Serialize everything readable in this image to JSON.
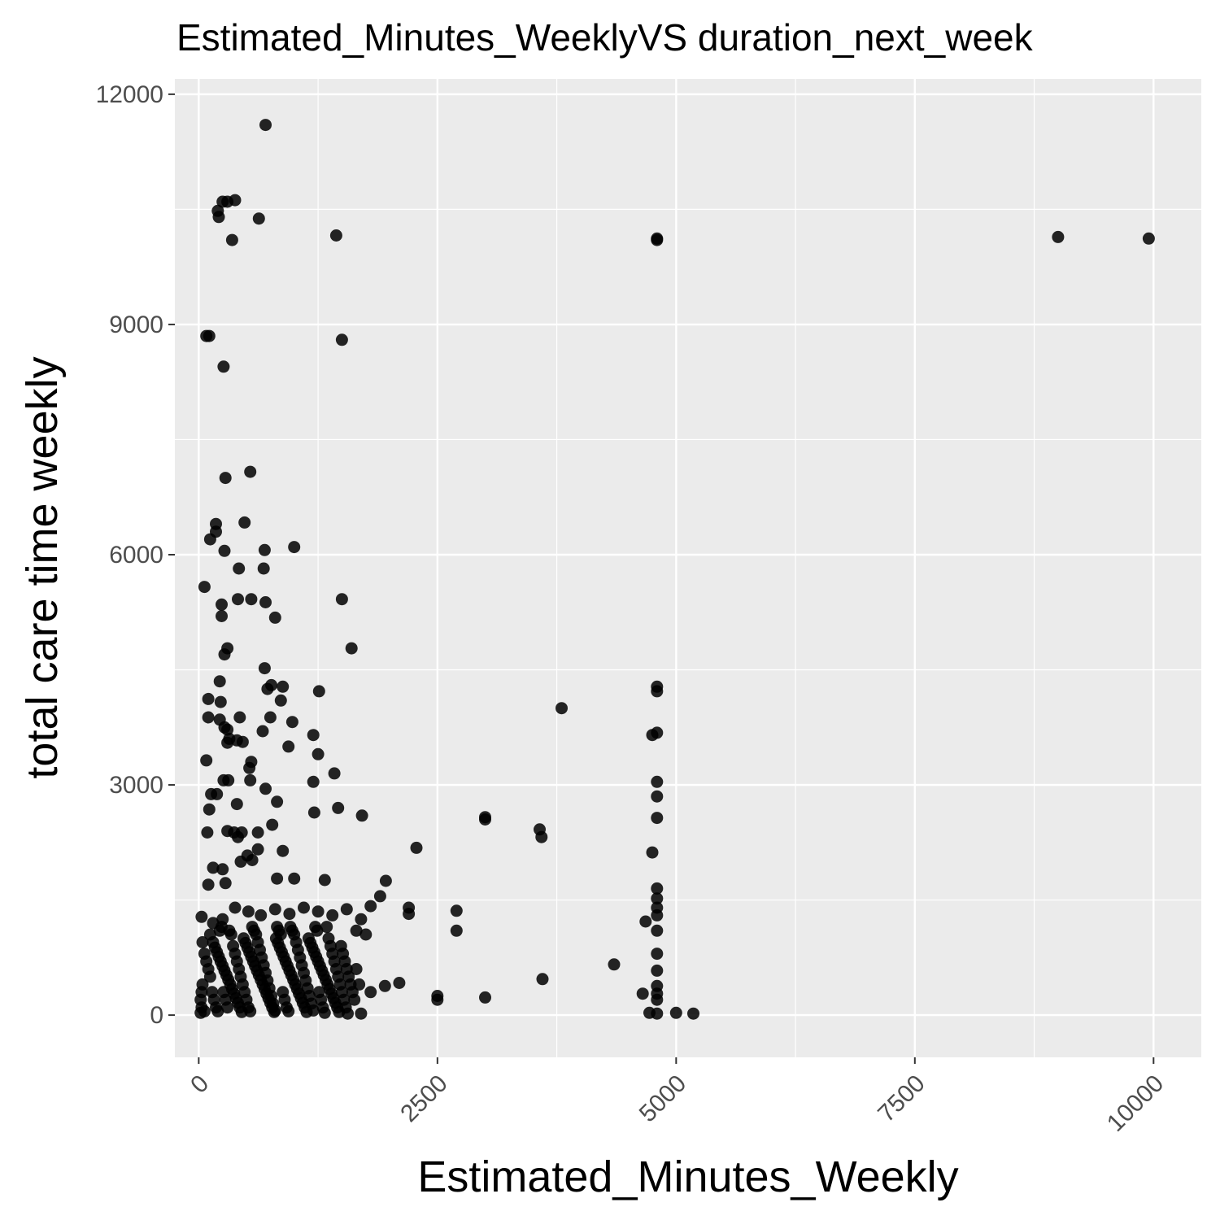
{
  "chart_data": {
    "type": "scatter",
    "title": "Estimated_Minutes_WeeklyVS duration_next_week",
    "xlabel": "Estimated_Minutes_Weekly",
    "ylabel": "total care time weekly",
    "xlim": [
      -250,
      10500
    ],
    "ylim": [
      -550,
      12200
    ],
    "xticks": [
      0,
      2500,
      5000,
      7500,
      10000
    ],
    "xtick_labels": [
      "0",
      "2500",
      "5000",
      "7500",
      "10000"
    ],
    "yticks": [
      0,
      3000,
      6000,
      9000,
      12000
    ],
    "ytick_labels": [
      "0",
      "3000",
      "6000",
      "9000",
      "12000"
    ],
    "grid": true,
    "point_color": "#000000",
    "panel_background": "#ebebeb",
    "grid_color": "#ffffff",
    "series": [
      {
        "points": [
          [
            700,
            11600
          ],
          [
            250,
            10600
          ],
          [
            300,
            10600
          ],
          [
            380,
            10620
          ],
          [
            200,
            10480
          ],
          [
            210,
            10400
          ],
          [
            630,
            10380
          ],
          [
            350,
            10100
          ],
          [
            1440,
            10160
          ],
          [
            4800,
            10100
          ],
          [
            4800,
            10120
          ],
          [
            9000,
            10140
          ],
          [
            9950,
            10120
          ],
          [
            80,
            8850
          ],
          [
            110,
            8850
          ],
          [
            1500,
            8800
          ],
          [
            260,
            8450
          ],
          [
            280,
            7000
          ],
          [
            540,
            7080
          ],
          [
            180,
            6400
          ],
          [
            180,
            6300
          ],
          [
            120,
            6200
          ],
          [
            480,
            6420
          ],
          [
            270,
            6050
          ],
          [
            690,
            6060
          ],
          [
            1000,
            6100
          ],
          [
            60,
            5580
          ],
          [
            420,
            5820
          ],
          [
            680,
            5820
          ],
          [
            410,
            5420
          ],
          [
            550,
            5420
          ],
          [
            1500,
            5420
          ],
          [
            240,
            5350
          ],
          [
            700,
            5380
          ],
          [
            240,
            5200
          ],
          [
            800,
            5180
          ],
          [
            1600,
            4780
          ],
          [
            300,
            4780
          ],
          [
            270,
            4700
          ],
          [
            690,
            4520
          ],
          [
            220,
            4350
          ],
          [
            720,
            4250
          ],
          [
            760,
            4300
          ],
          [
            880,
            4280
          ],
          [
            1260,
            4220
          ],
          [
            100,
            4120
          ],
          [
            860,
            4100
          ],
          [
            230,
            4080
          ],
          [
            3800,
            4000
          ],
          [
            4800,
            4280
          ],
          [
            4800,
            4220
          ],
          [
            100,
            3880
          ],
          [
            220,
            3850
          ],
          [
            430,
            3880
          ],
          [
            750,
            3880
          ],
          [
            980,
            3820
          ],
          [
            270,
            3750
          ],
          [
            300,
            3720
          ],
          [
            670,
            3700
          ],
          [
            4750,
            3650
          ],
          [
            4800,
            3680
          ],
          [
            1200,
            3650
          ],
          [
            320,
            3600
          ],
          [
            300,
            3550
          ],
          [
            400,
            3580
          ],
          [
            460,
            3560
          ],
          [
            940,
            3500
          ],
          [
            1250,
            3400
          ],
          [
            550,
            3300
          ],
          [
            80,
            3320
          ],
          [
            530,
            3220
          ],
          [
            1420,
            3150
          ],
          [
            260,
            3060
          ],
          [
            310,
            3060
          ],
          [
            540,
            3060
          ],
          [
            1200,
            3040
          ],
          [
            4800,
            3040
          ],
          [
            700,
            2950
          ],
          [
            130,
            2880
          ],
          [
            190,
            2880
          ],
          [
            4800,
            2850
          ],
          [
            820,
            2780
          ],
          [
            400,
            2750
          ],
          [
            110,
            2680
          ],
          [
            1460,
            2700
          ],
          [
            1210,
            2640
          ],
          [
            1710,
            2600
          ],
          [
            3000,
            2580
          ],
          [
            3000,
            2550
          ],
          [
            4800,
            2570
          ],
          [
            770,
            2480
          ],
          [
            3570,
            2420
          ],
          [
            3590,
            2320
          ],
          [
            90,
            2380
          ],
          [
            300,
            2400
          ],
          [
            370,
            2380
          ],
          [
            450,
            2380
          ],
          [
            620,
            2380
          ],
          [
            410,
            2320
          ],
          [
            2280,
            2180
          ],
          [
            620,
            2160
          ],
          [
            880,
            2140
          ],
          [
            4750,
            2120
          ],
          [
            510,
            2080
          ],
          [
            560,
            2020
          ],
          [
            440,
            2000
          ],
          [
            150,
            1920
          ],
          [
            250,
            1900
          ],
          [
            1960,
            1750
          ],
          [
            100,
            1700
          ],
          [
            280,
            1720
          ],
          [
            820,
            1780
          ],
          [
            1000,
            1780
          ],
          [
            1320,
            1760
          ],
          [
            4800,
            1650
          ],
          [
            4800,
            1520
          ],
          [
            1900,
            1550
          ],
          [
            1800,
            1420
          ],
          [
            2200,
            1400
          ],
          [
            2200,
            1320
          ],
          [
            2700,
            1360
          ],
          [
            2700,
            1100
          ],
          [
            4800,
            1400
          ],
          [
            4800,
            1300
          ],
          [
            4680,
            1220
          ],
          [
            4800,
            1100
          ],
          [
            4800,
            800
          ],
          [
            4350,
            660
          ],
          [
            4800,
            580
          ],
          [
            3600,
            470
          ],
          [
            4800,
            380
          ],
          [
            4800,
            280
          ],
          [
            4800,
            200
          ],
          [
            4650,
            280
          ],
          [
            4720,
            30
          ],
          [
            4800,
            20
          ],
          [
            5000,
            30
          ],
          [
            5180,
            20
          ],
          [
            2500,
            250
          ],
          [
            2500,
            200
          ],
          [
            3000,
            230
          ],
          [
            2100,
            420
          ],
          [
            1950,
            380
          ],
          [
            30,
            1280
          ],
          [
            150,
            1200
          ],
          [
            250,
            1250
          ],
          [
            380,
            1400
          ],
          [
            520,
            1350
          ],
          [
            650,
            1300
          ],
          [
            800,
            1380
          ],
          [
            950,
            1320
          ],
          [
            1100,
            1400
          ],
          [
            1250,
            1350
          ],
          [
            1400,
            1300
          ],
          [
            1550,
            1380
          ],
          [
            1700,
            1250
          ],
          [
            1650,
            1100
          ],
          [
            1750,
            1050
          ],
          [
            1800,
            300
          ],
          [
            1650,
            600
          ],
          [
            1680,
            400
          ],
          [
            1700,
            20
          ],
          [
            40,
            950
          ],
          [
            60,
            800
          ],
          [
            80,
            700
          ],
          [
            100,
            600
          ],
          [
            120,
            500
          ],
          [
            40,
            400
          ],
          [
            30,
            300
          ],
          [
            20,
            200
          ],
          [
            30,
            100
          ],
          [
            20,
            30
          ],
          [
            60,
            50
          ],
          [
            120,
            1050
          ],
          [
            150,
            950
          ],
          [
            170,
            880
          ],
          [
            190,
            820
          ],
          [
            210,
            760
          ],
          [
            230,
            700
          ],
          [
            250,
            640
          ],
          [
            270,
            580
          ],
          [
            290,
            520
          ],
          [
            310,
            460
          ],
          [
            330,
            400
          ],
          [
            350,
            340
          ],
          [
            370,
            280
          ],
          [
            390,
            220
          ],
          [
            410,
            160
          ],
          [
            430,
            100
          ],
          [
            450,
            40
          ],
          [
            470,
            1000
          ],
          [
            490,
            940
          ],
          [
            510,
            880
          ],
          [
            530,
            820
          ],
          [
            550,
            760
          ],
          [
            570,
            700
          ],
          [
            590,
            640
          ],
          [
            610,
            580
          ],
          [
            630,
            520
          ],
          [
            650,
            460
          ],
          [
            670,
            400
          ],
          [
            690,
            340
          ],
          [
            710,
            280
          ],
          [
            730,
            220
          ],
          [
            750,
            160
          ],
          [
            770,
            100
          ],
          [
            790,
            40
          ],
          [
            810,
            1000
          ],
          [
            830,
            940
          ],
          [
            850,
            880
          ],
          [
            870,
            820
          ],
          [
            890,
            760
          ],
          [
            910,
            700
          ],
          [
            930,
            640
          ],
          [
            950,
            580
          ],
          [
            970,
            520
          ],
          [
            990,
            460
          ],
          [
            1010,
            400
          ],
          [
            1030,
            340
          ],
          [
            1050,
            280
          ],
          [
            1070,
            220
          ],
          [
            1090,
            160
          ],
          [
            1110,
            100
          ],
          [
            1130,
            40
          ],
          [
            1150,
            1000
          ],
          [
            1170,
            940
          ],
          [
            1190,
            880
          ],
          [
            1210,
            820
          ],
          [
            1230,
            760
          ],
          [
            1250,
            700
          ],
          [
            1270,
            640
          ],
          [
            1290,
            580
          ],
          [
            1310,
            520
          ],
          [
            1330,
            460
          ],
          [
            1350,
            400
          ],
          [
            1370,
            340
          ],
          [
            1390,
            280
          ],
          [
            1410,
            220
          ],
          [
            1430,
            160
          ],
          [
            1450,
            100
          ],
          [
            1470,
            40
          ],
          [
            1490,
            900
          ],
          [
            1510,
            800
          ],
          [
            1530,
            700
          ],
          [
            1550,
            600
          ],
          [
            1570,
            500
          ],
          [
            1590,
            400
          ],
          [
            1610,
            300
          ],
          [
            1630,
            200
          ],
          [
            140,
            300
          ],
          [
            160,
            200
          ],
          [
            180,
            100
          ],
          [
            200,
            50
          ],
          [
            220,
            1100
          ],
          [
            240,
            1150
          ],
          [
            260,
            300
          ],
          [
            280,
            200
          ],
          [
            300,
            100
          ],
          [
            320,
            1100
          ],
          [
            340,
            1050
          ],
          [
            360,
            900
          ],
          [
            380,
            800
          ],
          [
            400,
            700
          ],
          [
            420,
            600
          ],
          [
            440,
            500
          ],
          [
            460,
            400
          ],
          [
            480,
            300
          ],
          [
            500,
            200
          ],
          [
            520,
            100
          ],
          [
            540,
            50
          ],
          [
            560,
            1150
          ],
          [
            580,
            1100
          ],
          [
            600,
            1050
          ],
          [
            620,
            950
          ],
          [
            640,
            850
          ],
          [
            660,
            750
          ],
          [
            680,
            650
          ],
          [
            700,
            550
          ],
          [
            720,
            450
          ],
          [
            740,
            350
          ],
          [
            760,
            250
          ],
          [
            780,
            150
          ],
          [
            800,
            60
          ],
          [
            820,
            1150
          ],
          [
            840,
            1100
          ],
          [
            860,
            1050
          ],
          [
            880,
            300
          ],
          [
            900,
            200
          ],
          [
            920,
            100
          ],
          [
            940,
            50
          ],
          [
            960,
            1150
          ],
          [
            980,
            1100
          ],
          [
            1000,
            1050
          ],
          [
            1020,
            950
          ],
          [
            1040,
            850
          ],
          [
            1060,
            750
          ],
          [
            1080,
            650
          ],
          [
            1100,
            550
          ],
          [
            1120,
            450
          ],
          [
            1140,
            350
          ],
          [
            1160,
            250
          ],
          [
            1180,
            150
          ],
          [
            1200,
            60
          ],
          [
            1220,
            1150
          ],
          [
            1240,
            1100
          ],
          [
            1260,
            300
          ],
          [
            1280,
            200
          ],
          [
            1300,
            100
          ],
          [
            1320,
            30
          ],
          [
            1340,
            1150
          ],
          [
            1360,
            1000
          ],
          [
            1380,
            900
          ],
          [
            1400,
            800
          ],
          [
            1420,
            700
          ],
          [
            1440,
            600
          ],
          [
            1460,
            500
          ],
          [
            1480,
            400
          ],
          [
            1500,
            300
          ],
          [
            1520,
            200
          ],
          [
            1540,
            100
          ],
          [
            1560,
            20
          ]
        ]
      }
    ]
  }
}
